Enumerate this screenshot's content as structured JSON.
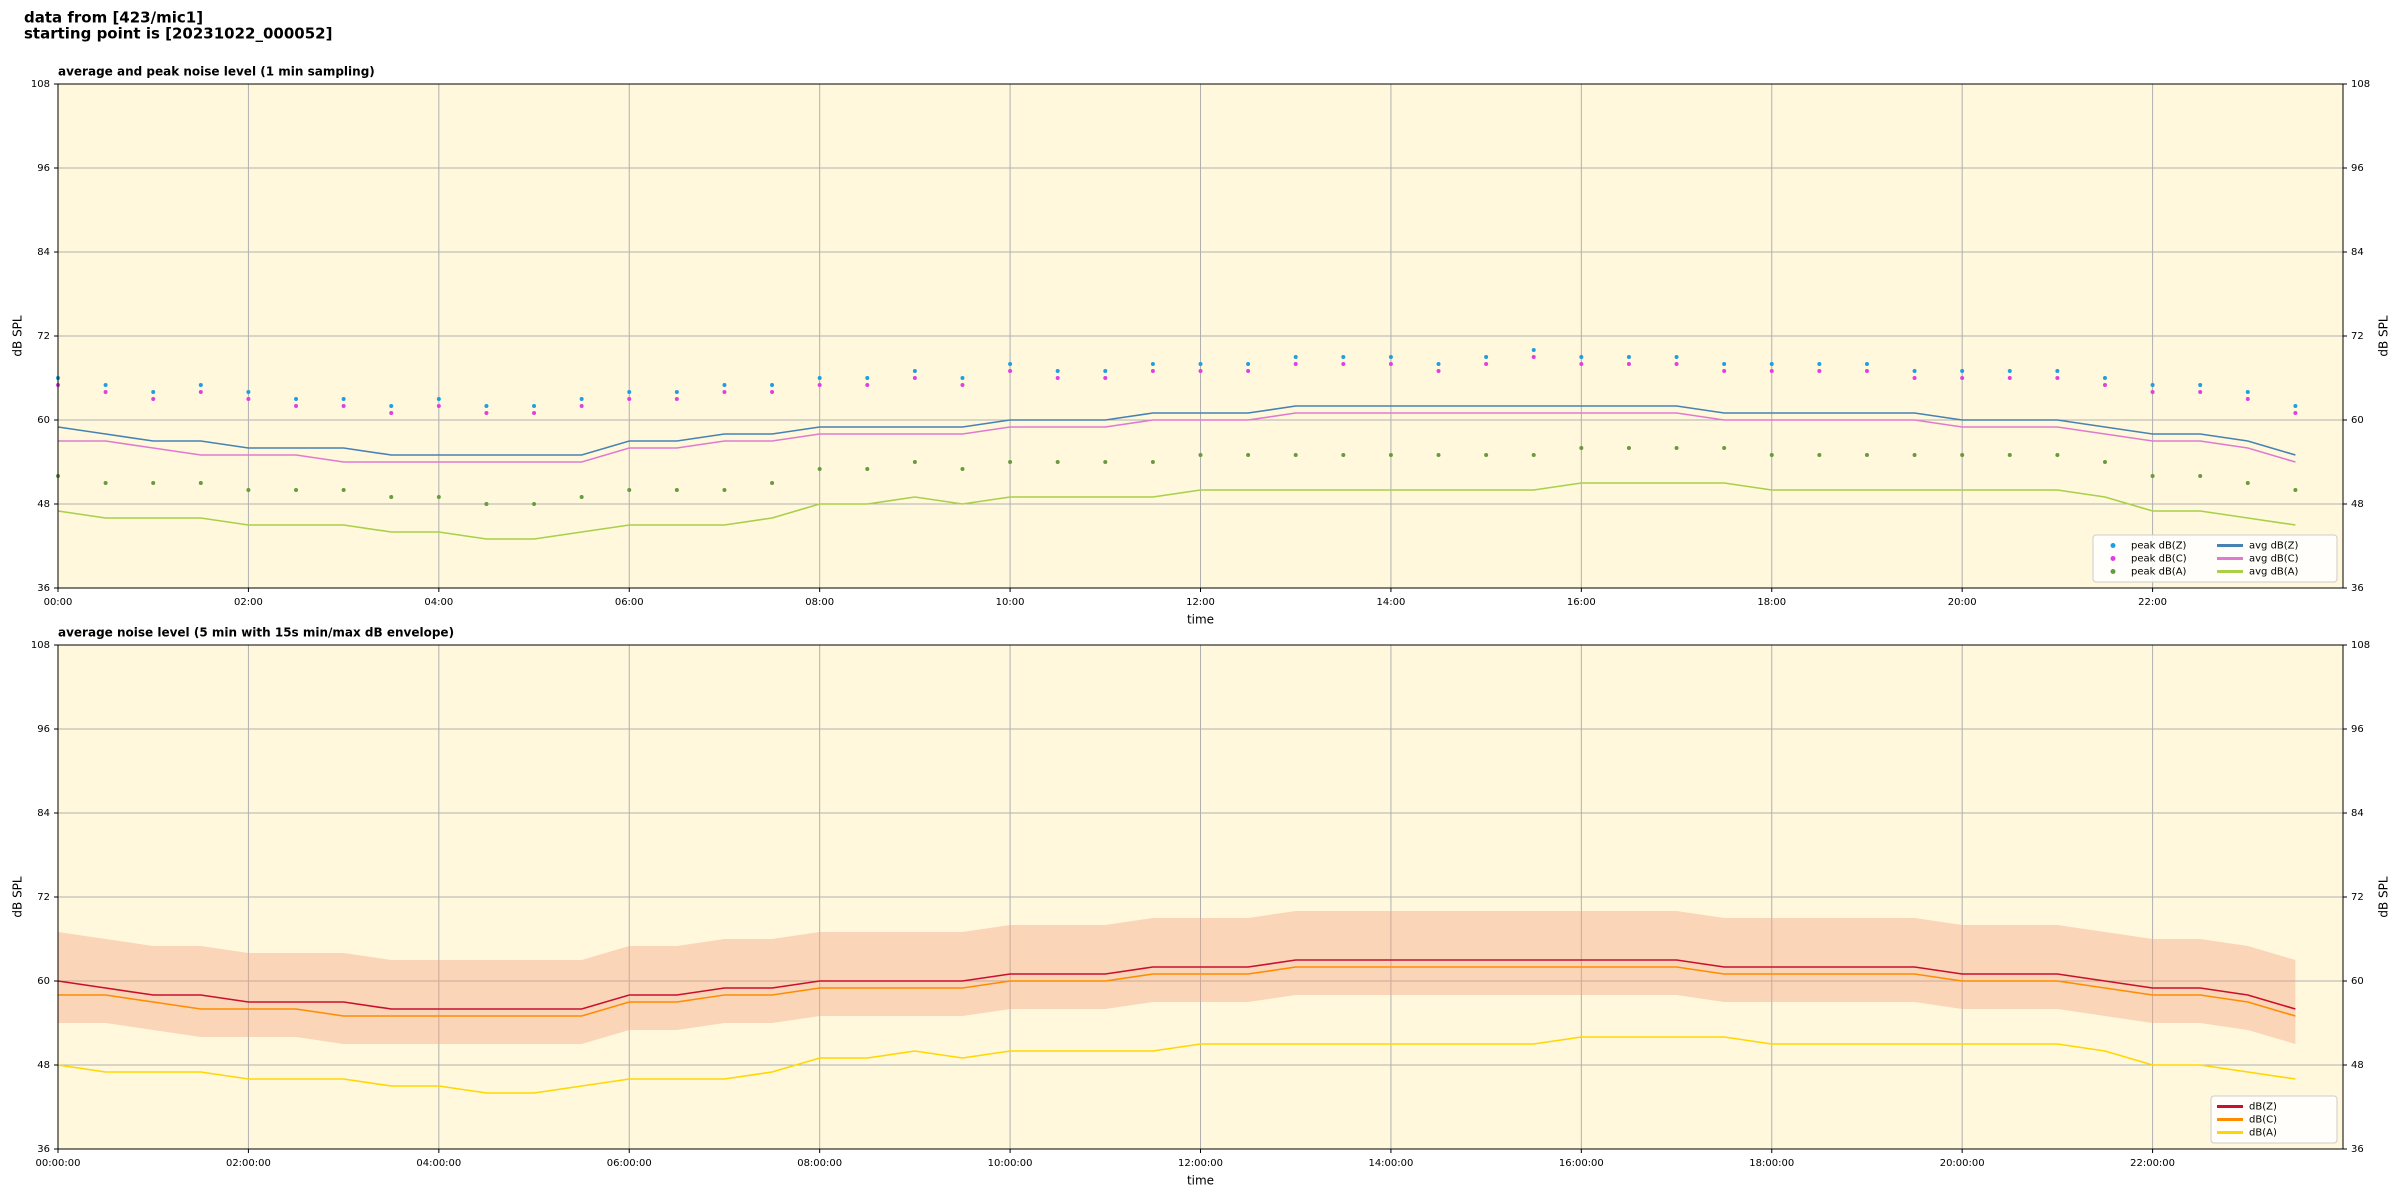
{
  "header": {
    "lines": [
      "data from [423/mic1]",
      "starting point is [20231022_000052]"
    ]
  },
  "chart_data": [
    {
      "type": "line",
      "title": "average and peak noise level (1 min sampling)",
      "xlabel": "time",
      "ylabel": "dB SPL",
      "x": [
        0,
        0.5,
        1,
        1.5,
        2,
        2.5,
        3,
        3.5,
        4,
        4.5,
        5,
        5.5,
        6,
        6.5,
        7,
        7.5,
        8,
        8.5,
        9,
        9.5,
        10,
        10.5,
        11,
        11.5,
        12,
        12.5,
        13,
        13.5,
        14,
        14.5,
        15,
        15.5,
        16,
        16.5,
        17,
        17.5,
        18,
        18.5,
        19,
        19.5,
        20,
        20.5,
        21,
        21.5,
        22,
        22.5,
        23,
        23.5
      ],
      "xlim": [
        0,
        24
      ],
      "xticks": [
        {
          "value": 0,
          "label": "00:00"
        },
        {
          "value": 2,
          "label": "02:00"
        },
        {
          "value": 4,
          "label": "04:00"
        },
        {
          "value": 6,
          "label": "06:00"
        },
        {
          "value": 8,
          "label": "08:00"
        },
        {
          "value": 10,
          "label": "10:00"
        },
        {
          "value": 12,
          "label": "12:00"
        },
        {
          "value": 14,
          "label": "14:00"
        },
        {
          "value": 16,
          "label": "16:00"
        },
        {
          "value": 18,
          "label": "18:00"
        },
        {
          "value": 20,
          "label": "20:00"
        },
        {
          "value": 22,
          "label": "22:00"
        }
      ],
      "ylim": [
        36,
        108
      ],
      "yticks": [
        36,
        48,
        60,
        72,
        84,
        96,
        108
      ],
      "grid": true,
      "legend": "lower right",
      "legend_columns": 2,
      "background": "#fff8dc",
      "series": [
        {
          "name": "peak dB(Z)",
          "kind": "scatter",
          "color": "#1f9fe0",
          "values": [
            66,
            65,
            64,
            65,
            64,
            63,
            63,
            62,
            63,
            62,
            62,
            63,
            64,
            64,
            65,
            65,
            66,
            66,
            67,
            66,
            68,
            67,
            67,
            68,
            68,
            68,
            69,
            69,
            69,
            68,
            69,
            70,
            69,
            69,
            69,
            68,
            68,
            68,
            68,
            67,
            67,
            67,
            67,
            66,
            65,
            65,
            64,
            62
          ]
        },
        {
          "name": "peak dB(C)",
          "kind": "scatter",
          "color": "#e040e0",
          "values": [
            65,
            64,
            63,
            64,
            63,
            62,
            62,
            61,
            62,
            61,
            61,
            62,
            63,
            63,
            64,
            64,
            65,
            65,
            66,
            65,
            67,
            66,
            66,
            67,
            67,
            67,
            68,
            68,
            68,
            67,
            68,
            69,
            68,
            68,
            68,
            67,
            67,
            67,
            67,
            66,
            66,
            66,
            66,
            65,
            64,
            64,
            63,
            61
          ]
        },
        {
          "name": "peak dB(A)",
          "kind": "scatter",
          "color": "#6a9a40",
          "values": [
            52,
            51,
            51,
            51,
            50,
            50,
            50,
            49,
            49,
            48,
            48,
            49,
            50,
            50,
            50,
            51,
            53,
            53,
            54,
            53,
            54,
            54,
            54,
            54,
            55,
            55,
            55,
            55,
            55,
            55,
            55,
            55,
            56,
            56,
            56,
            56,
            55,
            55,
            55,
            55,
            55,
            55,
            55,
            54,
            52,
            52,
            51,
            50
          ]
        },
        {
          "name": "avg dB(Z)",
          "kind": "line",
          "color": "#4682b4",
          "values": [
            59,
            58,
            57,
            57,
            56,
            56,
            56,
            55,
            55,
            55,
            55,
            55,
            57,
            57,
            58,
            58,
            59,
            59,
            59,
            59,
            60,
            60,
            60,
            61,
            61,
            61,
            62,
            62,
            62,
            62,
            62,
            62,
            62,
            62,
            62,
            61,
            61,
            61,
            61,
            61,
            60,
            60,
            60,
            59,
            58,
            58,
            57,
            55
          ]
        },
        {
          "name": "avg dB(C)",
          "kind": "line",
          "color": "#e07ad0",
          "values": [
            57,
            57,
            56,
            55,
            55,
            55,
            54,
            54,
            54,
            54,
            54,
            54,
            56,
            56,
            57,
            57,
            58,
            58,
            58,
            58,
            59,
            59,
            59,
            60,
            60,
            60,
            61,
            61,
            61,
            61,
            61,
            61,
            61,
            61,
            61,
            60,
            60,
            60,
            60,
            60,
            59,
            59,
            59,
            58,
            57,
            57,
            56,
            54
          ]
        },
        {
          "name": "avg dB(A)",
          "kind": "line",
          "color": "#a8d048",
          "values": [
            47,
            46,
            46,
            46,
            45,
            45,
            45,
            44,
            44,
            43,
            43,
            44,
            45,
            45,
            45,
            46,
            48,
            48,
            49,
            48,
            49,
            49,
            49,
            49,
            50,
            50,
            50,
            50,
            50,
            50,
            50,
            50,
            51,
            51,
            51,
            51,
            50,
            50,
            50,
            50,
            50,
            50,
            50,
            49,
            47,
            47,
            46,
            45
          ]
        }
      ]
    },
    {
      "type": "line",
      "title": "average noise level (5 min with 15s min/max dB envelope)",
      "xlabel": "time",
      "ylabel": "dB SPL",
      "x": [
        0,
        0.5,
        1,
        1.5,
        2,
        2.5,
        3,
        3.5,
        4,
        4.5,
        5,
        5.5,
        6,
        6.5,
        7,
        7.5,
        8,
        8.5,
        9,
        9.5,
        10,
        10.5,
        11,
        11.5,
        12,
        12.5,
        13,
        13.5,
        14,
        14.5,
        15,
        15.5,
        16,
        16.5,
        17,
        17.5,
        18,
        18.5,
        19,
        19.5,
        20,
        20.5,
        21,
        21.5,
        22,
        22.5,
        23,
        23.5
      ],
      "xlim": [
        0,
        24
      ],
      "xticks": [
        {
          "value": 0,
          "label": "00:00:00"
        },
        {
          "value": 2,
          "label": "02:00:00"
        },
        {
          "value": 4,
          "label": "04:00:00"
        },
        {
          "value": 6,
          "label": "06:00:00"
        },
        {
          "value": 8,
          "label": "08:00:00"
        },
        {
          "value": 10,
          "label": "10:00:00"
        },
        {
          "value": 12,
          "label": "12:00:00"
        },
        {
          "value": 14,
          "label": "14:00:00"
        },
        {
          "value": 16,
          "label": "16:00:00"
        },
        {
          "value": 18,
          "label": "18:00:00"
        },
        {
          "value": 20,
          "label": "20:00:00"
        },
        {
          "value": 22,
          "label": "22:00:00"
        }
      ],
      "ylim": [
        36,
        108
      ],
      "yticks": [
        36,
        48,
        60,
        72,
        84,
        96,
        108
      ],
      "grid": true,
      "legend": "lower right",
      "legend_columns": 1,
      "background": "#fff8dc",
      "envelope": {
        "color": "#f4a080",
        "min": [
          54,
          54,
          53,
          52,
          52,
          52,
          51,
          51,
          51,
          51,
          51,
          51,
          53,
          53,
          54,
          54,
          55,
          55,
          55,
          55,
          56,
          56,
          56,
          57,
          57,
          57,
          58,
          58,
          58,
          58,
          58,
          58,
          58,
          58,
          58,
          57,
          57,
          57,
          57,
          57,
          56,
          56,
          56,
          55,
          54,
          54,
          53,
          51
        ],
        "max": [
          67,
          66,
          65,
          65,
          64,
          64,
          64,
          63,
          63,
          63,
          63,
          63,
          65,
          65,
          66,
          66,
          67,
          67,
          67,
          67,
          68,
          68,
          68,
          69,
          69,
          69,
          70,
          70,
          70,
          70,
          70,
          70,
          70,
          70,
          70,
          69,
          69,
          69,
          69,
          69,
          68,
          68,
          68,
          67,
          66,
          66,
          65,
          63
        ]
      },
      "series": [
        {
          "name": "dB(Z)",
          "kind": "line",
          "color": "#c8102e",
          "values": [
            60,
            59,
            58,
            58,
            57,
            57,
            57,
            56,
            56,
            56,
            56,
            56,
            58,
            58,
            59,
            59,
            60,
            60,
            60,
            60,
            61,
            61,
            61,
            62,
            62,
            62,
            63,
            63,
            63,
            63,
            63,
            63,
            63,
            63,
            63,
            62,
            62,
            62,
            62,
            62,
            61,
            61,
            61,
            60,
            59,
            59,
            58,
            56
          ]
        },
        {
          "name": "dB(C)",
          "kind": "line",
          "color": "#ff8c00",
          "values": [
            58,
            58,
            57,
            56,
            56,
            56,
            55,
            55,
            55,
            55,
            55,
            55,
            57,
            57,
            58,
            58,
            59,
            59,
            59,
            59,
            60,
            60,
            60,
            61,
            61,
            61,
            62,
            62,
            62,
            62,
            62,
            62,
            62,
            62,
            62,
            61,
            61,
            61,
            61,
            61,
            60,
            60,
            60,
            59,
            58,
            58,
            57,
            55
          ]
        },
        {
          "name": "dB(A)",
          "kind": "line",
          "color": "#ffd700",
          "values": [
            48,
            47,
            47,
            47,
            46,
            46,
            46,
            45,
            45,
            44,
            44,
            45,
            46,
            46,
            46,
            47,
            49,
            49,
            50,
            49,
            50,
            50,
            50,
            50,
            51,
            51,
            51,
            51,
            51,
            51,
            51,
            51,
            52,
            52,
            52,
            52,
            51,
            51,
            51,
            51,
            51,
            51,
            51,
            50,
            48,
            48,
            47,
            46
          ]
        }
      ]
    }
  ]
}
